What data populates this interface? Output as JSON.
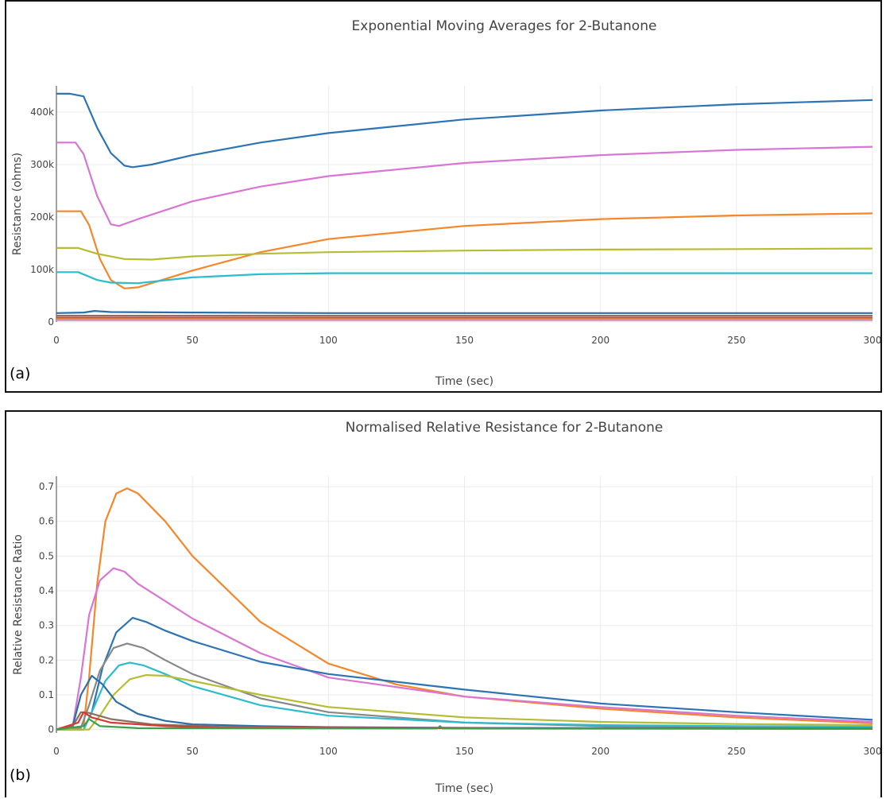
{
  "chart_data": [
    {
      "type": "line",
      "panel_label": "(a)",
      "title": "Exponential Moving Averages for 2-Butanone",
      "xlabel": "Time (sec)",
      "ylabel": "Resistance (ohms)",
      "xlim": [
        0,
        300
      ],
      "ylim": [
        0,
        450000
      ],
      "xticks": [
        0,
        50,
        100,
        150,
        200,
        250,
        300
      ],
      "xtick_labels": [
        "0",
        "50",
        "100",
        "150",
        "200",
        "250",
        "300"
      ],
      "yticks": [
        0,
        100000,
        200000,
        300000,
        400000
      ],
      "ytick_labels": [
        "0",
        "100k",
        "200k",
        "300k",
        "400k"
      ],
      "grid": true,
      "series": [
        {
          "color": "#2c74b4",
          "points": [
            [
              0,
              435000
            ],
            [
              5,
              435000
            ],
            [
              10,
              430000
            ],
            [
              15,
              370000
            ],
            [
              20,
              322000
            ],
            [
              25,
              298000
            ],
            [
              28,
              295000
            ],
            [
              35,
              300000
            ],
            [
              50,
              318000
            ],
            [
              75,
              342000
            ],
            [
              100,
              360000
            ],
            [
              150,
              386000
            ],
            [
              200,
              403000
            ],
            [
              250,
              415000
            ],
            [
              300,
              423000
            ]
          ]
        },
        {
          "color": "#d975d2",
          "points": [
            [
              0,
              342000
            ],
            [
              7,
              342000
            ],
            [
              10,
              320000
            ],
            [
              15,
              240000
            ],
            [
              20,
              186000
            ],
            [
              23,
              183000
            ],
            [
              30,
              196000
            ],
            [
              50,
              230000
            ],
            [
              75,
              258000
            ],
            [
              100,
              278000
            ],
            [
              150,
              303000
            ],
            [
              200,
              318000
            ],
            [
              250,
              328000
            ],
            [
              300,
              334000
            ]
          ]
        },
        {
          "color": "#f5862a",
          "points": [
            [
              0,
              211000
            ],
            [
              9,
              211000
            ],
            [
              12,
              185000
            ],
            [
              16,
              120000
            ],
            [
              20,
              80000
            ],
            [
              25,
              64000
            ],
            [
              30,
              66000
            ],
            [
              50,
              98000
            ],
            [
              75,
              133000
            ],
            [
              100,
              158000
            ],
            [
              150,
              183000
            ],
            [
              200,
              196000
            ],
            [
              250,
              203000
            ],
            [
              300,
              207000
            ]
          ]
        },
        {
          "color": "#b6bd35",
          "points": [
            [
              0,
              141000
            ],
            [
              8,
              141000
            ],
            [
              15,
              130000
            ],
            [
              25,
              120000
            ],
            [
              35,
              119000
            ],
            [
              50,
              125000
            ],
            [
              75,
              130000
            ],
            [
              100,
              133000
            ],
            [
              150,
              136000
            ],
            [
              200,
              138000
            ],
            [
              250,
              139000
            ],
            [
              300,
              140000
            ]
          ]
        },
        {
          "color": "#2bbccd",
          "points": [
            [
              0,
              95000
            ],
            [
              8,
              95000
            ],
            [
              15,
              80000
            ],
            [
              20,
              75000
            ],
            [
              30,
              74000
            ],
            [
              50,
              85000
            ],
            [
              75,
              91000
            ],
            [
              100,
              93000
            ],
            [
              150,
              93000
            ],
            [
              200,
              93000
            ],
            [
              250,
              93000
            ],
            [
              300,
              93000
            ]
          ]
        },
        {
          "color": "#2a6fa8",
          "points": [
            [
              0,
              17000
            ],
            [
              10,
              18000
            ],
            [
              14,
              21000
            ],
            [
              20,
              19000
            ],
            [
              50,
              18000
            ],
            [
              100,
              17000
            ],
            [
              200,
              17000
            ],
            [
              300,
              17000
            ]
          ]
        },
        {
          "color": "#8c6e64",
          "points": [
            [
              0,
              12000
            ],
            [
              300,
              12000
            ]
          ]
        },
        {
          "color": "#d73a2f",
          "points": [
            [
              0,
              8000
            ],
            [
              300,
              8000
            ]
          ]
        },
        {
          "color": "#e08040",
          "points": [
            [
              0,
              6000
            ],
            [
              300,
              6000
            ]
          ]
        },
        {
          "color": "#d4a0c8",
          "points": [
            [
              0,
              3000
            ],
            [
              300,
              3000
            ]
          ]
        }
      ]
    },
    {
      "type": "line",
      "panel_label": "(b)",
      "title": "Normalised Relative Resistance for 2-Butanone",
      "xlabel": "Time (sec)",
      "ylabel": "Relative Resistance Ratio",
      "xlim": [
        0,
        300
      ],
      "ylim": [
        -0.01,
        0.73
      ],
      "xticks": [
        0,
        50,
        100,
        150,
        200,
        250,
        300
      ],
      "xtick_labels": [
        "0",
        "50",
        "100",
        "150",
        "200",
        "250",
        "300"
      ],
      "yticks": [
        0,
        0.1,
        0.2,
        0.3,
        0.4,
        0.5,
        0.6,
        0.7
      ],
      "ytick_labels": [
        "0",
        "0.1",
        "0.2",
        "0.3",
        "0.4",
        "0.5",
        "0.6",
        "0.7"
      ],
      "grid": true,
      "series": [
        {
          "color": "#f5862a",
          "points": [
            [
              0,
              0
            ],
            [
              10,
              0.01
            ],
            [
              12,
              0.15
            ],
            [
              15,
              0.42
            ],
            [
              18,
              0.6
            ],
            [
              22,
              0.68
            ],
            [
              26,
              0.695
            ],
            [
              30,
              0.68
            ],
            [
              40,
              0.6
            ],
            [
              50,
              0.5
            ],
            [
              75,
              0.31
            ],
            [
              100,
              0.19
            ],
            [
              125,
              0.13
            ],
            [
              150,
              0.095
            ],
            [
              200,
              0.06
            ],
            [
              250,
              0.035
            ],
            [
              300,
              0.018
            ]
          ]
        },
        {
          "color": "#d975d2",
          "points": [
            [
              0,
              0
            ],
            [
              6,
              0.01
            ],
            [
              9,
              0.15
            ],
            [
              12,
              0.33
            ],
            [
              16,
              0.43
            ],
            [
              21,
              0.465
            ],
            [
              25,
              0.455
            ],
            [
              30,
              0.42
            ],
            [
              40,
              0.37
            ],
            [
              50,
              0.32
            ],
            [
              75,
              0.22
            ],
            [
              100,
              0.15
            ],
            [
              150,
              0.095
            ],
            [
              200,
              0.065
            ],
            [
              250,
              0.04
            ],
            [
              300,
              0.022
            ]
          ]
        },
        {
          "color": "#2c74b4",
          "points": [
            [
              0,
              0
            ],
            [
              10,
              0
            ],
            [
              13,
              0.05
            ],
            [
              17,
              0.18
            ],
            [
              22,
              0.28
            ],
            [
              28,
              0.322
            ],
            [
              33,
              0.31
            ],
            [
              40,
              0.285
            ],
            [
              50,
              0.255
            ],
            [
              75,
              0.195
            ],
            [
              100,
              0.16
            ],
            [
              150,
              0.115
            ],
            [
              200,
              0.075
            ],
            [
              250,
              0.05
            ],
            [
              300,
              0.028
            ]
          ]
        },
        {
          "color": "#888888",
          "points": [
            [
              0,
              0
            ],
            [
              9,
              0.005
            ],
            [
              12,
              0.07
            ],
            [
              16,
              0.17
            ],
            [
              21,
              0.235
            ],
            [
              26,
              0.248
            ],
            [
              32,
              0.235
            ],
            [
              40,
              0.2
            ],
            [
              50,
              0.16
            ],
            [
              75,
              0.09
            ],
            [
              100,
              0.05
            ],
            [
              150,
              0.02
            ],
            [
              200,
              0.01
            ],
            [
              250,
              0.007
            ],
            [
              300,
              0.005
            ]
          ]
        },
        {
          "color": "#2bbccd",
          "points": [
            [
              0,
              0
            ],
            [
              10,
              0
            ],
            [
              13,
              0.05
            ],
            [
              18,
              0.14
            ],
            [
              23,
              0.185
            ],
            [
              27,
              0.193
            ],
            [
              32,
              0.185
            ],
            [
              40,
              0.16
            ],
            [
              50,
              0.125
            ],
            [
              75,
              0.07
            ],
            [
              100,
              0.04
            ],
            [
              150,
              0.02
            ],
            [
              200,
              0.013
            ],
            [
              250,
              0.01
            ],
            [
              300,
              0.008
            ]
          ]
        },
        {
          "color": "#b6bd35",
          "points": [
            [
              0,
              0
            ],
            [
              12,
              0
            ],
            [
              16,
              0.04
            ],
            [
              21,
              0.1
            ],
            [
              27,
              0.145
            ],
            [
              33,
              0.157
            ],
            [
              40,
              0.155
            ],
            [
              50,
              0.14
            ],
            [
              75,
              0.1
            ],
            [
              100,
              0.065
            ],
            [
              150,
              0.035
            ],
            [
              200,
              0.022
            ],
            [
              250,
              0.016
            ],
            [
              300,
              0.013
            ]
          ]
        },
        {
          "color": "#2a6fa8",
          "points": [
            [
              0,
              0
            ],
            [
              6,
              0.01
            ],
            [
              9,
              0.1
            ],
            [
              13,
              0.155
            ],
            [
              17,
              0.13
            ],
            [
              22,
              0.08
            ],
            [
              30,
              0.045
            ],
            [
              40,
              0.025
            ],
            [
              50,
              0.015
            ],
            [
              75,
              0.01
            ],
            [
              100,
              0.007
            ],
            [
              150,
              0.005
            ],
            [
              300,
              0.003
            ]
          ]
        },
        {
          "color": "#8c6e64",
          "points": [
            [
              0,
              0
            ],
            [
              6,
              0.01
            ],
            [
              9,
              0.05
            ],
            [
              12,
              0.048
            ],
            [
              20,
              0.03
            ],
            [
              35,
              0.015
            ],
            [
              60,
              0.008
            ],
            [
              100,
              0.005
            ],
            [
              300,
              0.002
            ]
          ]
        },
        {
          "color": "#d73a2f",
          "points": [
            [
              0,
              0
            ],
            [
              8,
              0.02
            ],
            [
              10,
              0.05
            ],
            [
              13,
              0.035
            ],
            [
              20,
              0.02
            ],
            [
              40,
              0.01
            ],
            [
              60,
              0.005
            ],
            [
              100,
              0.005
            ],
            [
              150,
              0.004
            ],
            [
              300,
              0.003
            ]
          ]
        },
        {
          "color": "#3c9f4a",
          "points": [
            [
              0,
              0
            ],
            [
              10,
              0.01
            ],
            [
              12,
              0.03
            ],
            [
              16,
              0.01
            ],
            [
              30,
              0.004
            ],
            [
              140,
              0.003
            ],
            [
              141,
              0.01
            ],
            [
              142,
              0.003
            ],
            [
              300,
              0.002
            ]
          ]
        }
      ]
    }
  ]
}
